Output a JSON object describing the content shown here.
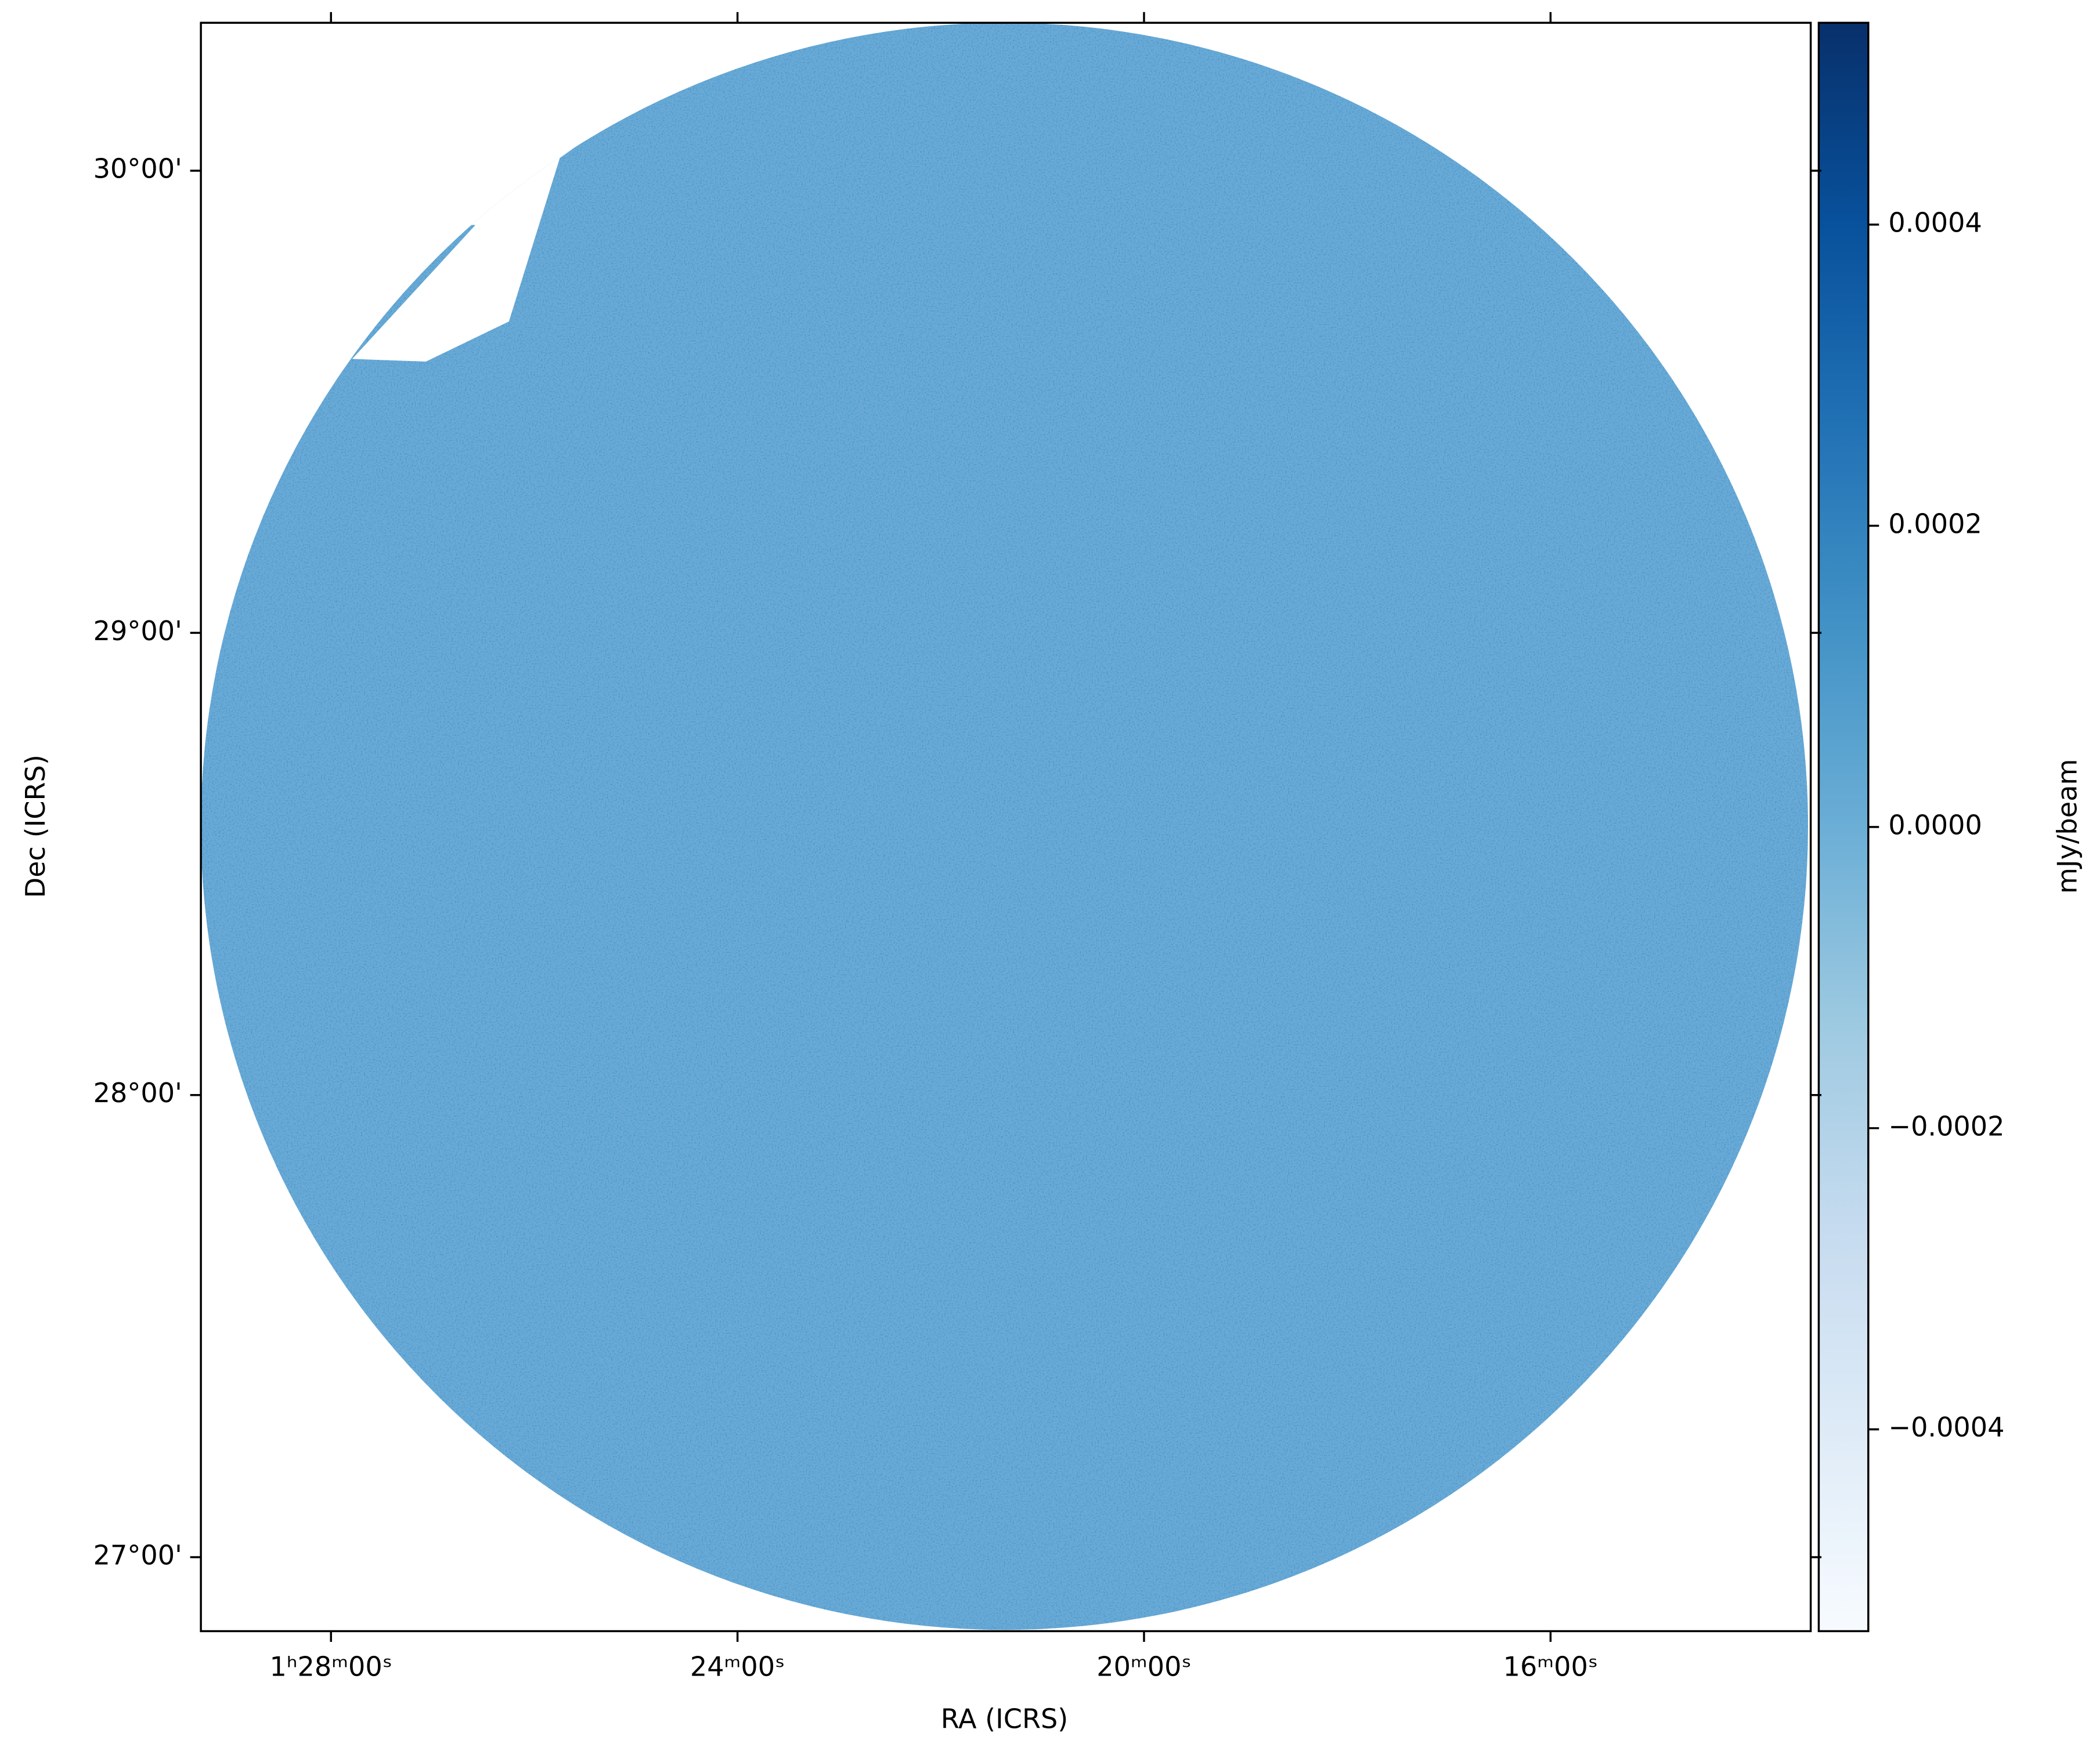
{
  "chart_data": {
    "type": "sky-image",
    "xlabel": "RA (ICRS)",
    "ylabel": "Dec (ICRS)",
    "xlim": [
      22.32,
      18.36
    ],
    "xticks": [
      {
        "value": 22,
        "label": "1ʰ28ᵐ00ˢ"
      },
      {
        "value": 21,
        "label": "24ᵐ00ˢ"
      },
      {
        "value": 20,
        "label": "20ᵐ00ˢ"
      },
      {
        "value": 19,
        "label": "16ᵐ00ˢ"
      }
    ],
    "ylim": [
      26.84,
      30.32
    ],
    "yticks": [
      {
        "value": 27,
        "label": "27°00'"
      },
      {
        "value": 28,
        "label": "28°00'"
      },
      {
        "value": 29,
        "label": "29°00'"
      },
      {
        "value": 30,
        "label": "30°00'"
      }
    ],
    "field_color": "#6aaad6",
    "colorbar": {
      "label": "mJy/beam",
      "clim": [
        -0.000534,
        0.000534
      ],
      "ticks": [
        {
          "value": -0.0004,
          "label": "−0.0004"
        },
        {
          "value": -0.0002,
          "label": "−0.0002"
        },
        {
          "value": 0,
          "label": "0.0000"
        },
        {
          "value": 0.0002,
          "label": "0.0002"
        },
        {
          "value": 0.0004,
          "label": "0.0004"
        }
      ],
      "colors": [
        "#f7fbff",
        "#deebf7",
        "#c6dbef",
        "#9ecae1",
        "#6baed6",
        "#4292c6",
        "#2171b5",
        "#08519c",
        "#08306b"
      ]
    }
  }
}
